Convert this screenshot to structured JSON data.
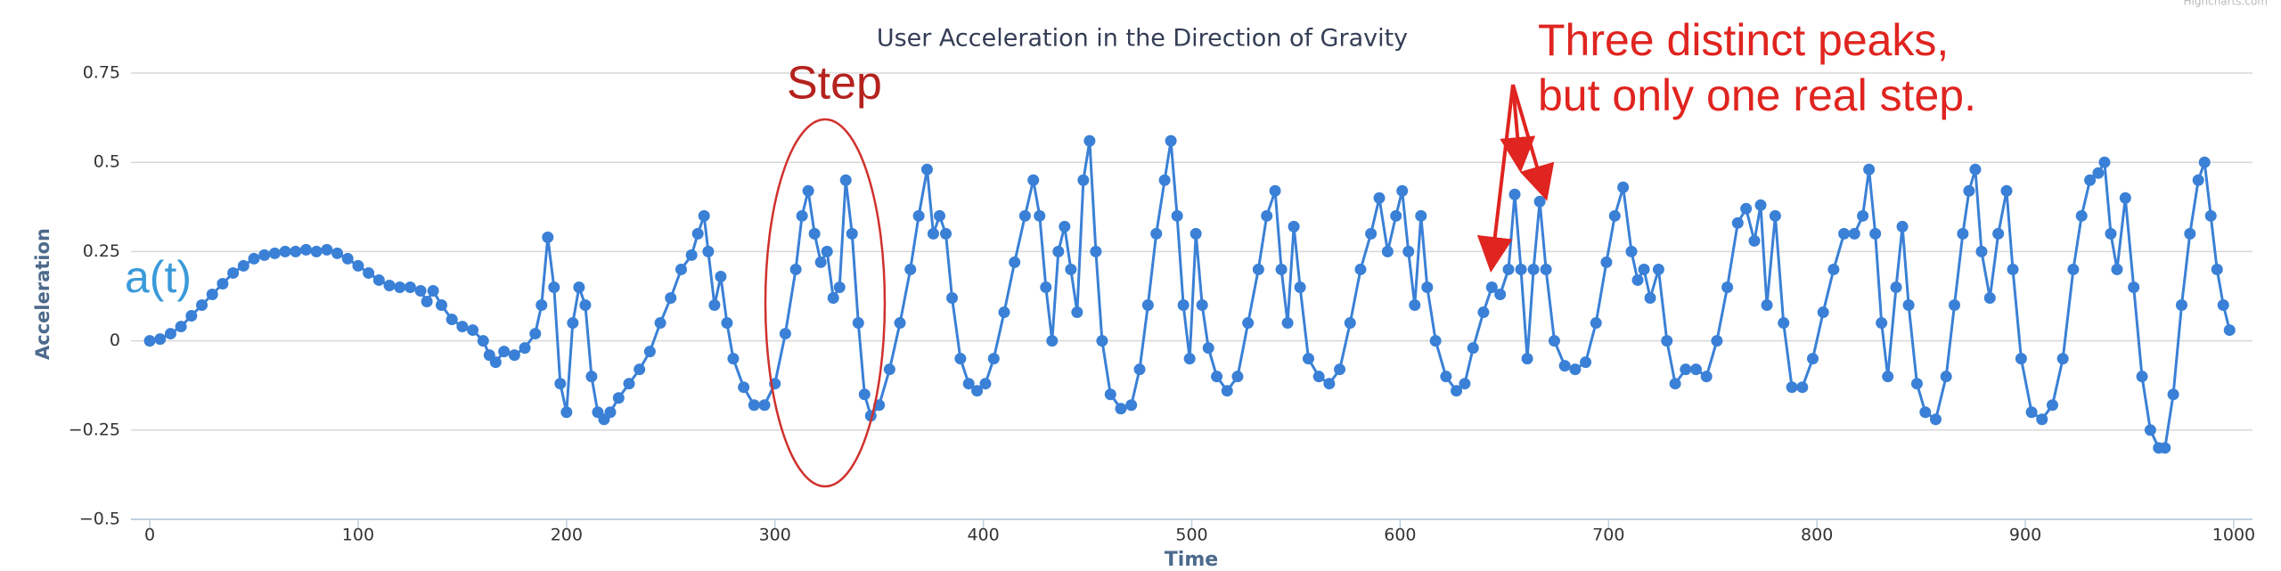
{
  "chart_data": {
    "type": "line",
    "title": "User Acceleration in the Direction of Gravity",
    "credits": "Highcharts.com",
    "x_label": "Time",
    "y_label": "Acceleration",
    "annotations": {
      "series_label": "a(t)",
      "step": "Step",
      "peaks": [
        "Three distinct peaks,",
        "but only one real step."
      ]
    },
    "xlim": [
      -9,
      1009
    ],
    "ylim": [
      -0.5,
      0.75
    ],
    "xticks": [
      0,
      100,
      200,
      300,
      400,
      500,
      600,
      700,
      800,
      900,
      1000
    ],
    "yticks": [
      {
        "value": -0.5,
        "label": "−0.5"
      },
      {
        "value": -0.25,
        "label": "−0.25"
      },
      0,
      0.25,
      0.5,
      0.75
    ],
    "grid": true,
    "x": [
      0,
      5,
      10,
      15,
      20,
      25,
      30,
      35,
      40,
      45,
      50,
      55,
      60,
      65,
      70,
      75,
      80,
      85,
      90,
      95,
      100,
      105,
      110,
      115,
      120,
      125,
      130,
      133,
      136,
      140,
      145,
      150,
      155,
      160,
      163,
      166,
      170,
      175,
      180,
      185,
      188,
      191,
      194,
      197,
      200,
      203,
      206,
      209,
      212,
      215,
      218,
      221,
      225,
      230,
      235,
      240,
      245,
      250,
      255,
      260,
      263,
      266,
      268,
      271,
      274,
      277,
      280,
      285,
      290,
      295,
      300,
      305,
      310,
      313,
      316,
      319,
      322,
      325,
      328,
      331,
      334,
      337,
      340,
      343,
      346,
      350,
      355,
      360,
      365,
      369,
      373,
      376,
      379,
      382,
      385,
      389,
      393,
      397,
      401,
      405,
      410,
      415,
      420,
      424,
      427,
      430,
      433,
      436,
      439,
      442,
      445,
      448,
      451,
      454,
      457,
      461,
      466,
      471,
      475,
      479,
      483,
      487,
      490,
      493,
      496,
      499,
      502,
      505,
      508,
      512,
      517,
      522,
      527,
      532,
      536,
      540,
      543,
      546,
      549,
      552,
      556,
      561,
      566,
      571,
      576,
      581,
      586,
      590,
      594,
      598,
      601,
      604,
      607,
      610,
      613,
      617,
      622,
      627,
      631,
      635,
      640,
      644,
      648,
      652,
      655,
      658,
      661,
      664,
      667,
      670,
      674,
      679,
      684,
      689,
      694,
      699,
      703,
      707,
      711,
      714,
      717,
      720,
      724,
      728,
      732,
      737,
      742,
      747,
      752,
      757,
      762,
      766,
      770,
      773,
      776,
      780,
      784,
      788,
      793,
      798,
      803,
      808,
      813,
      818,
      822,
      825,
      828,
      831,
      834,
      838,
      841,
      844,
      848,
      852,
      857,
      862,
      866,
      870,
      873,
      876,
      879,
      883,
      887,
      891,
      894,
      898,
      903,
      908,
      913,
      918,
      923,
      927,
      931,
      935,
      938,
      941,
      944,
      948,
      952,
      956,
      960,
      964,
      967,
      971,
      975,
      979,
      983,
      986,
      989,
      992,
      995,
      998
    ],
    "series": [
      {
        "name": "a(t)",
        "color": "#3a80d6",
        "values": [
          0,
          0.005,
          0.02,
          0.04,
          0.07,
          0.1,
          0.13,
          0.16,
          0.19,
          0.21,
          0.23,
          0.24,
          0.245,
          0.25,
          0.25,
          0.255,
          0.25,
          0.255,
          0.245,
          0.23,
          0.21,
          0.19,
          0.17,
          0.155,
          0.15,
          0.15,
          0.14,
          0.11,
          0.14,
          0.1,
          0.06,
          0.04,
          0.03,
          0,
          -0.04,
          -0.06,
          -0.03,
          -0.04,
          -0.02,
          0.02,
          0.1,
          0.29,
          0.15,
          -0.12,
          -0.2,
          0.05,
          0.15,
          0.1,
          -0.1,
          -0.2,
          -0.22,
          -0.2,
          -0.16,
          -0.12,
          -0.08,
          -0.03,
          0.05,
          0.12,
          0.2,
          0.24,
          0.3,
          0.35,
          0.25,
          0.1,
          0.18,
          0.05,
          -0.05,
          -0.13,
          -0.18,
          -0.18,
          -0.12,
          0.02,
          0.2,
          0.35,
          0.42,
          0.3,
          0.22,
          0.25,
          0.12,
          0.15,
          0.45,
          0.3,
          0.05,
          -0.15,
          -0.21,
          -0.18,
          -0.08,
          0.05,
          0.2,
          0.35,
          0.48,
          0.3,
          0.35,
          0.3,
          0.12,
          -0.05,
          -0.12,
          -0.14,
          -0.12,
          -0.05,
          0.08,
          0.22,
          0.35,
          0.45,
          0.35,
          0.15,
          0,
          0.25,
          0.32,
          0.2,
          0.08,
          0.45,
          0.56,
          0.25,
          0,
          -0.15,
          -0.19,
          -0.18,
          -0.08,
          0.1,
          0.3,
          0.45,
          0.56,
          0.35,
          0.1,
          -0.05,
          0.3,
          0.1,
          -0.02,
          -0.1,
          -0.14,
          -0.1,
          0.05,
          0.2,
          0.35,
          0.42,
          0.2,
          0.05,
          0.32,
          0.15,
          -0.05,
          -0.1,
          -0.12,
          -0.08,
          0.05,
          0.2,
          0.3,
          0.4,
          0.25,
          0.35,
          0.42,
          0.25,
          0.1,
          0.35,
          0.15,
          0,
          -0.1,
          -0.14,
          -0.12,
          -0.02,
          0.08,
          0.15,
          0.13,
          0.2,
          0.41,
          0.2,
          -0.05,
          0.2,
          0.39,
          0.2,
          0,
          -0.07,
          -0.08,
          -0.06,
          0.05,
          0.22,
          0.35,
          0.43,
          0.25,
          0.17,
          0.2,
          0.12,
          0.2,
          0,
          -0.12,
          -0.08,
          -0.08,
          -0.1,
          0,
          0.15,
          0.33,
          0.37,
          0.28,
          0.38,
          0.1,
          0.35,
          0.05,
          -0.13,
          -0.13,
          -0.05,
          0.08,
          0.2,
          0.3,
          0.3,
          0.35,
          0.48,
          0.3,
          0.05,
          -0.1,
          0.15,
          0.32,
          0.1,
          -0.12,
          -0.2,
          -0.22,
          -0.1,
          0.1,
          0.3,
          0.42,
          0.48,
          0.25,
          0.12,
          0.3,
          0.42,
          0.2,
          -0.05,
          -0.2,
          -0.22,
          -0.18,
          -0.05,
          0.2,
          0.35,
          0.45,
          0.47,
          0.5,
          0.3,
          0.2,
          0.4,
          0.15,
          -0.1,
          -0.25,
          -0.3,
          -0.3,
          -0.15,
          0.1,
          0.3,
          0.45,
          0.5,
          0.35,
          0.2,
          0.1,
          0.03
        ]
      }
    ]
  }
}
